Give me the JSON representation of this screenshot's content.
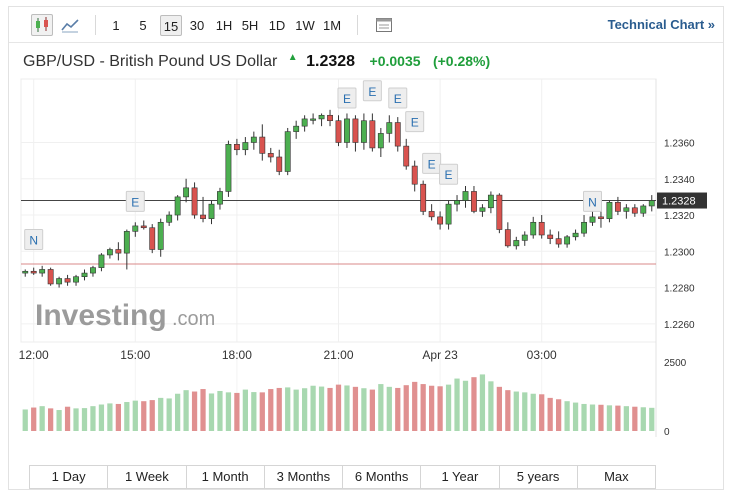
{
  "toolbar": {
    "timeframes": [
      "1",
      "5",
      "15",
      "30",
      "1H",
      "5H",
      "1D",
      "1W",
      "1M"
    ],
    "active_timeframe": "15",
    "technical_chart_label": "Technical Chart »"
  },
  "header": {
    "name": "GBP/USD - British Pound US Dollar",
    "price": "1.2328",
    "change": "+0.0035",
    "change_pct": "(+0.28%)"
  },
  "logo_text": "Investing.com",
  "colors": {
    "up": "#4caf50",
    "down": "#d9534f",
    "vol_up": "#a8d8b0",
    "vol_down": "#e09090",
    "ref_line": "#d88888",
    "price_line": "#444444",
    "event_marker": "#2a6fb0"
  },
  "range_buttons": [
    "1 Day",
    "1 Week",
    "1 Month",
    "3 Months",
    "6 Months",
    "1 Year",
    "5 years",
    "Max"
  ],
  "chart_data": {
    "type": "candlestick",
    "x_tick_labels": [
      "12:00",
      "15:00",
      "18:00",
      "21:00",
      "Apr 23",
      "03:00"
    ],
    "y_tick_labels": [
      "1.2360",
      "1.2340",
      "1.2320",
      "1.2300",
      "1.2280",
      "1.2260"
    ],
    "ylim": [
      1.225,
      1.2395
    ],
    "current_price": 1.2328,
    "current_price_label": "1.2328",
    "reference_line": 1.2293,
    "volume_tick_labels": [
      "2500",
      "0"
    ],
    "volume_max": 2500,
    "event_markers": [
      {
        "label": "N",
        "index": 1,
        "price": 1.2301
      },
      {
        "label": "E",
        "index": 13,
        "price": 1.2322
      },
      {
        "label": "E",
        "index": 38,
        "price": 1.2379
      },
      {
        "label": "E",
        "index": 41,
        "price": 1.2383
      },
      {
        "label": "E",
        "index": 44,
        "price": 1.2379
      },
      {
        "label": "E",
        "index": 46,
        "price": 1.2366
      },
      {
        "label": "E",
        "index": 48,
        "price": 1.2343
      },
      {
        "label": "E",
        "index": 50,
        "price": 1.2337
      },
      {
        "label": "N",
        "index": 67,
        "price": 1.2322
      }
    ],
    "candles": [
      [
        1.2288,
        1.229,
        1.2286,
        1.2289
      ],
      [
        1.2289,
        1.2291,
        1.2287,
        1.2288
      ],
      [
        1.2288,
        1.2292,
        1.2286,
        1.229
      ],
      [
        1.229,
        1.2291,
        1.2281,
        1.2282
      ],
      [
        1.2282,
        1.2286,
        1.228,
        1.2285
      ],
      [
        1.2285,
        1.2287,
        1.2281,
        1.2283
      ],
      [
        1.2283,
        1.2287,
        1.2281,
        1.2286
      ],
      [
        1.2286,
        1.229,
        1.2284,
        1.2288
      ],
      [
        1.2288,
        1.2292,
        1.2286,
        1.2291
      ],
      [
        1.2291,
        1.2299,
        1.2289,
        1.2298
      ],
      [
        1.2298,
        1.2302,
        1.2296,
        1.2301
      ],
      [
        1.2301,
        1.2305,
        1.2295,
        1.2299
      ],
      [
        1.2299,
        1.2312,
        1.229,
        1.2311
      ],
      [
        1.2311,
        1.2316,
        1.2308,
        1.2314
      ],
      [
        1.2314,
        1.2317,
        1.2312,
        1.2313
      ],
      [
        1.2313,
        1.2315,
        1.2299,
        1.2301
      ],
      [
        1.2301,
        1.2318,
        1.2297,
        1.2316
      ],
      [
        1.2316,
        1.2322,
        1.2314,
        1.232
      ],
      [
        1.232,
        1.2331,
        1.2317,
        1.233
      ],
      [
        1.233,
        1.234,
        1.2327,
        1.2335
      ],
      [
        1.2335,
        1.2338,
        1.2318,
        1.232
      ],
      [
        1.232,
        1.233,
        1.2316,
        1.2318
      ],
      [
        1.2318,
        1.2328,
        1.2315,
        1.2326
      ],
      [
        1.2326,
        1.2335,
        1.2323,
        1.2333
      ],
      [
        1.2333,
        1.2361,
        1.233,
        1.2359
      ],
      [
        1.2359,
        1.2362,
        1.2353,
        1.2356
      ],
      [
        1.2356,
        1.2363,
        1.2353,
        1.236
      ],
      [
        1.236,
        1.2366,
        1.2356,
        1.2363
      ],
      [
        1.2363,
        1.237,
        1.235,
        1.2354
      ],
      [
        1.2354,
        1.2357,
        1.2349,
        1.2352
      ],
      [
        1.2352,
        1.2356,
        1.2342,
        1.2344
      ],
      [
        1.2344,
        1.2368,
        1.2342,
        1.2366
      ],
      [
        1.2366,
        1.2372,
        1.2362,
        1.2369
      ],
      [
        1.2369,
        1.2375,
        1.2366,
        1.2373
      ],
      [
        1.2373,
        1.2376,
        1.237,
        1.2373
      ],
      [
        1.2373,
        1.2376,
        1.2369,
        1.2375
      ],
      [
        1.2375,
        1.2378,
        1.2369,
        1.2372
      ],
      [
        1.2372,
        1.2375,
        1.2358,
        1.236
      ],
      [
        1.236,
        1.2376,
        1.2357,
        1.2373
      ],
      [
        1.2373,
        1.2375,
        1.2355,
        1.236
      ],
      [
        1.236,
        1.2376,
        1.2356,
        1.2372
      ],
      [
        1.2372,
        1.2376,
        1.2355,
        1.2357
      ],
      [
        1.2357,
        1.2368,
        1.2352,
        1.2365
      ],
      [
        1.2365,
        1.2375,
        1.236,
        1.2371
      ],
      [
        1.2371,
        1.2374,
        1.2355,
        1.2358
      ],
      [
        1.2358,
        1.2362,
        1.2345,
        1.2347
      ],
      [
        1.2347,
        1.235,
        1.2333,
        1.2337
      ],
      [
        1.2337,
        1.2339,
        1.232,
        1.2322
      ],
      [
        1.2322,
        1.2326,
        1.2317,
        1.2319
      ],
      [
        1.2319,
        1.2322,
        1.2312,
        1.2315
      ],
      [
        1.2315,
        1.2328,
        1.2312,
        1.2326
      ],
      [
        1.2326,
        1.2331,
        1.2322,
        1.2328
      ],
      [
        1.2328,
        1.2336,
        1.2324,
        1.2333
      ],
      [
        1.2333,
        1.2336,
        1.2321,
        1.2322
      ],
      [
        1.2322,
        1.2326,
        1.2319,
        1.2324
      ],
      [
        1.2324,
        1.2333,
        1.2321,
        1.2331
      ],
      [
        1.2331,
        1.2332,
        1.231,
        1.2312
      ],
      [
        1.2312,
        1.2316,
        1.2302,
        1.2303
      ],
      [
        1.2303,
        1.2308,
        1.2301,
        1.2306
      ],
      [
        1.2306,
        1.2311,
        1.2303,
        1.2309
      ],
      [
        1.2309,
        1.2319,
        1.2307,
        1.2316
      ],
      [
        1.2316,
        1.232,
        1.2307,
        1.2309
      ],
      [
        1.2309,
        1.2312,
        1.2304,
        1.2307
      ],
      [
        1.2307,
        1.2311,
        1.2302,
        1.2304
      ],
      [
        1.2304,
        1.2309,
        1.2302,
        1.2308
      ],
      [
        1.2308,
        1.2312,
        1.2306,
        1.231
      ],
      [
        1.231,
        1.232,
        1.2308,
        1.2316
      ],
      [
        1.2316,
        1.2327,
        1.2314,
        1.2319
      ],
      [
        1.2319,
        1.2322,
        1.2313,
        1.2318
      ],
      [
        1.2318,
        1.2328,
        1.2316,
        1.2327
      ],
      [
        1.2327,
        1.233,
        1.232,
        1.2322
      ],
      [
        1.2322,
        1.2326,
        1.2318,
        1.2324
      ],
      [
        1.2324,
        1.2326,
        1.2319,
        1.2321
      ],
      [
        1.2321,
        1.2326,
        1.2319,
        1.2325
      ],
      [
        1.2325,
        1.2331,
        1.2322,
        1.2328
      ]
    ],
    "volumes": [
      780,
      850,
      900,
      820,
      760,
      880,
      820,
      830,
      900,
      960,
      1000,
      980,
      1050,
      1100,
      1080,
      1120,
      1200,
      1180,
      1350,
      1480,
      1430,
      1520,
      1360,
      1450,
      1400,
      1380,
      1500,
      1410,
      1400,
      1520,
      1560,
      1580,
      1500,
      1550,
      1640,
      1610,
      1560,
      1680,
      1650,
      1600,
      1550,
      1500,
      1700,
      1600,
      1560,
      1660,
      1780,
      1700,
      1640,
      1620,
      1680,
      1900,
      1820,
      1950,
      2050,
      1800,
      1600,
      1480,
      1430,
      1400,
      1350,
      1330,
      1200,
      1150,
      1080,
      1030,
      980,
      960,
      950,
      930,
      920,
      900,
      880,
      860,
      840
    ]
  }
}
